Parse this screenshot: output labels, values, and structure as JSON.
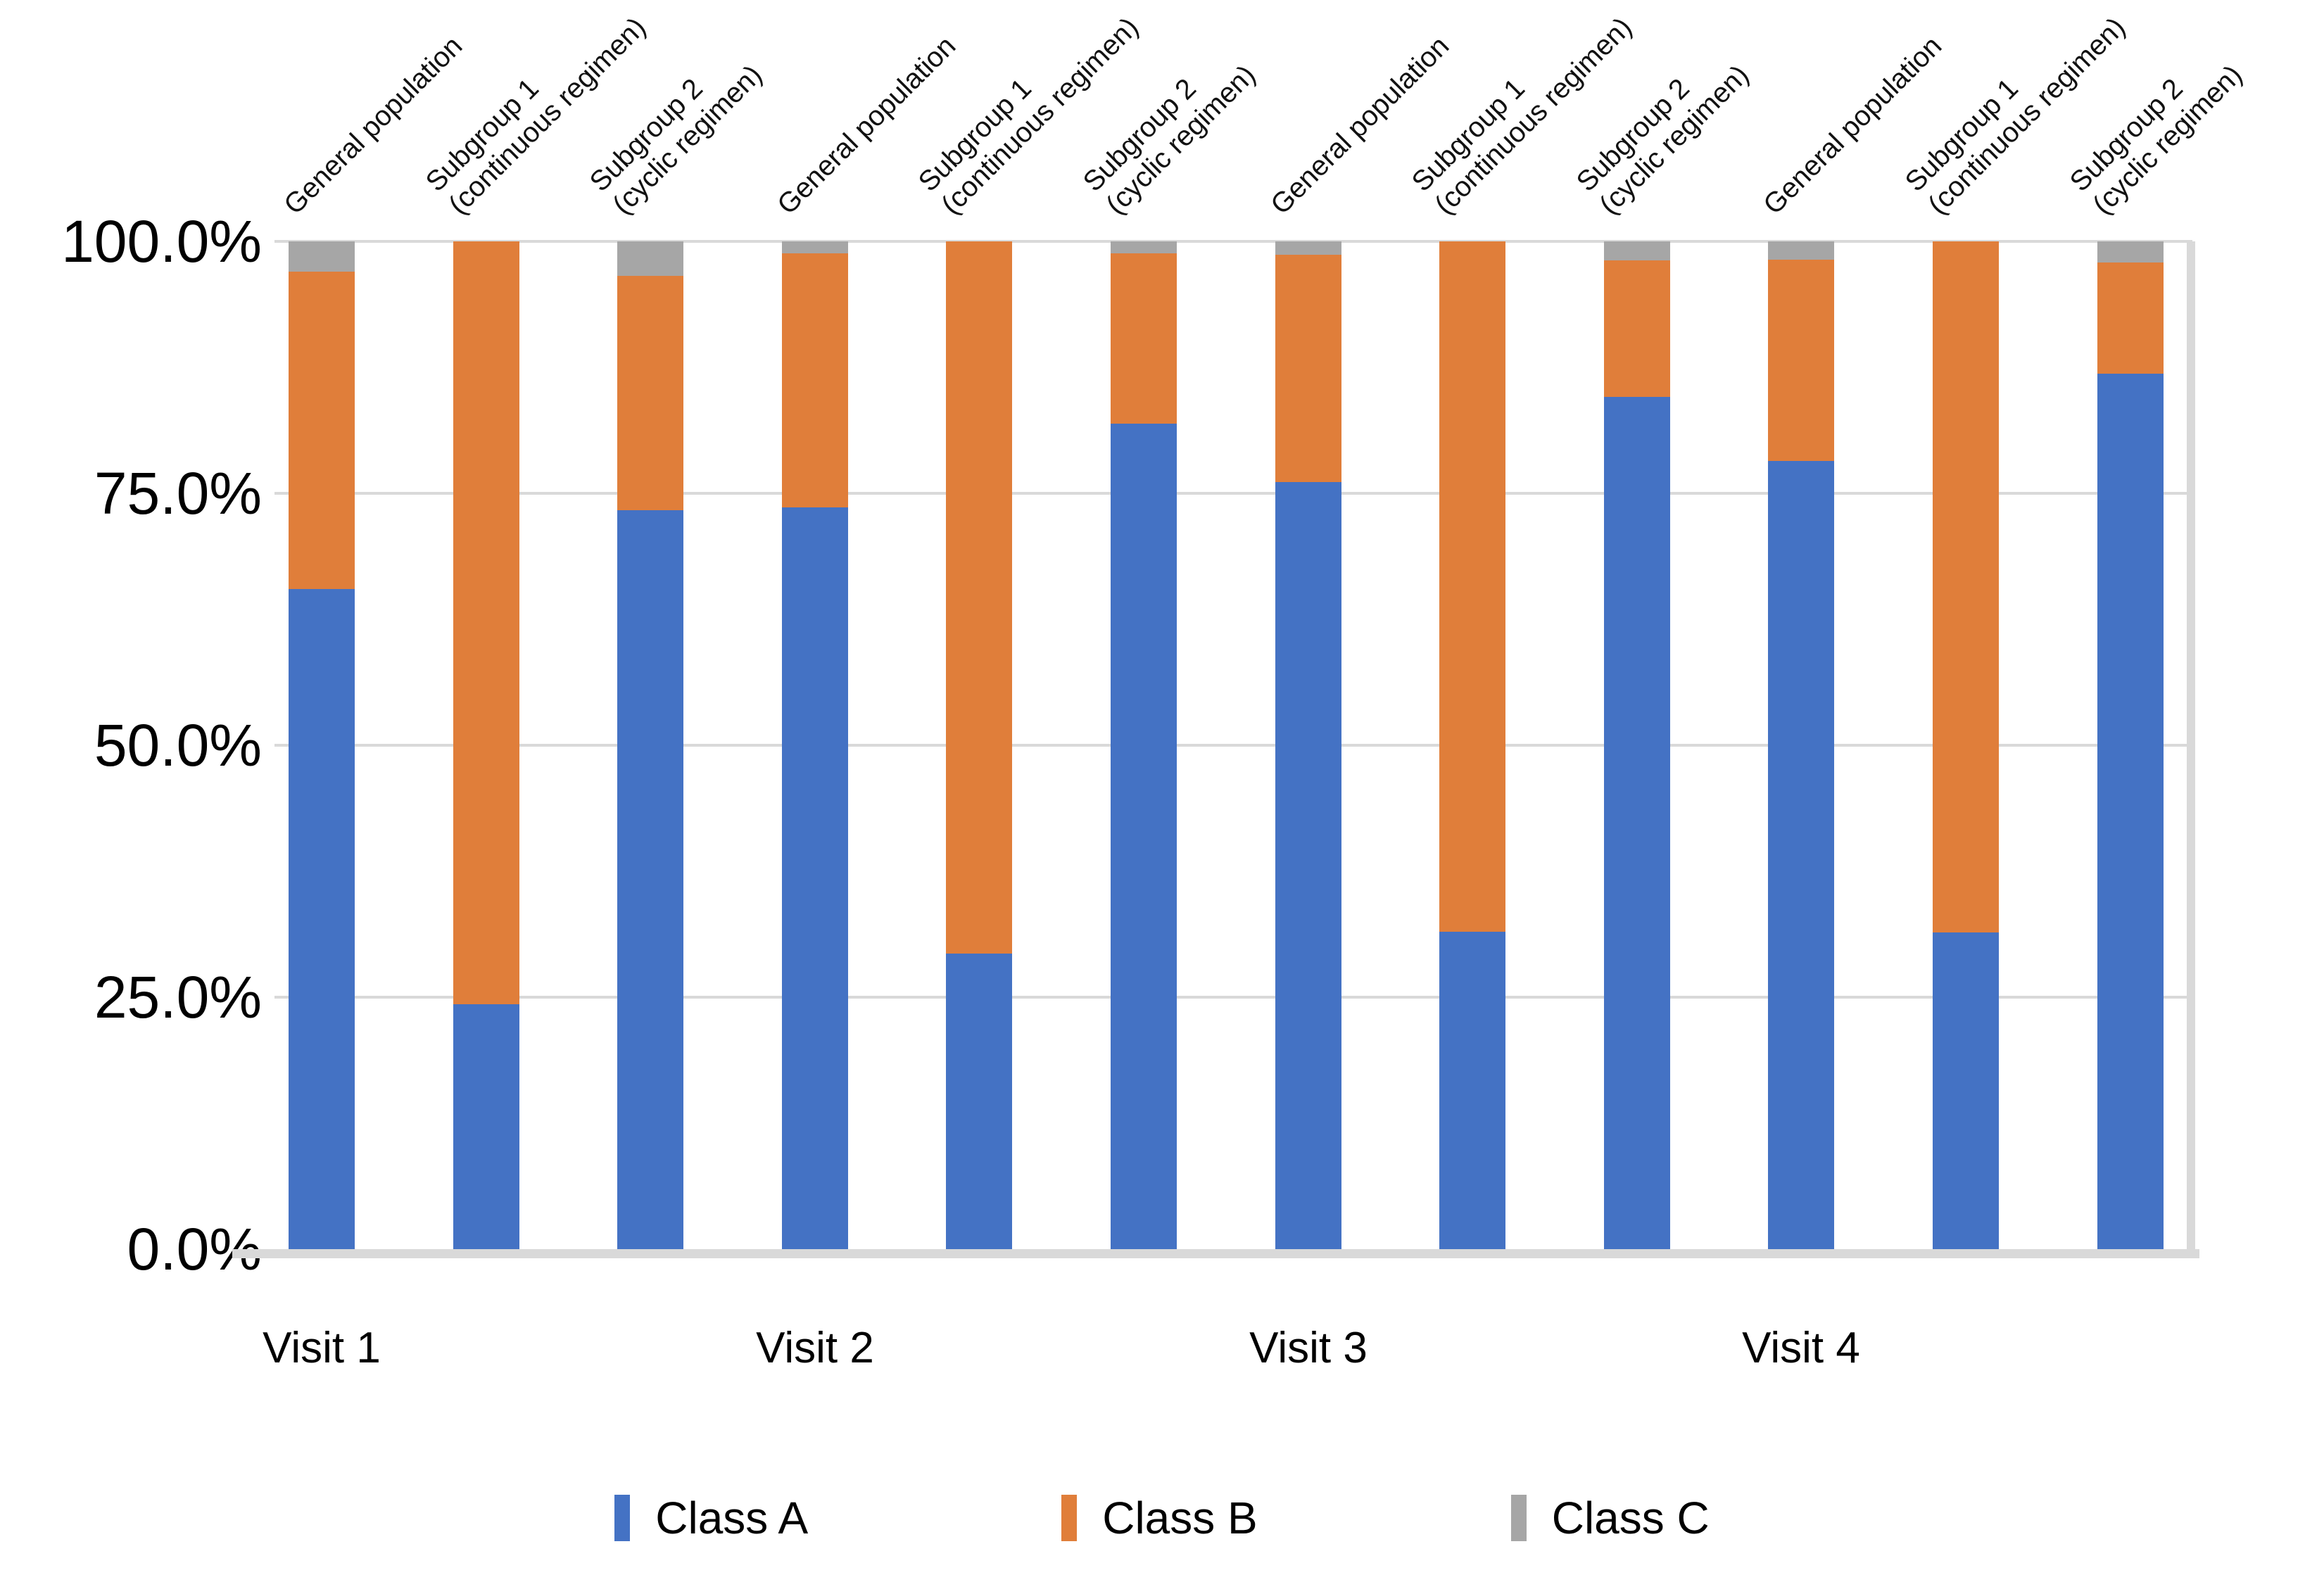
{
  "chart_data": {
    "type": "bar",
    "subtype": "stacked-100-percent-column",
    "title": "",
    "xlabel": "",
    "ylabel": "",
    "ylim": [
      0,
      100
    ],
    "grid": "horizontal",
    "legend_position": "bottom",
    "y_ticks": [
      "100.0%",
      "75.0%",
      "50.0%",
      "25.0%",
      "0.0%"
    ],
    "groups": [
      "Visit 1",
      "Visit 2",
      "Visit 3",
      "Visit 4"
    ],
    "categories": [
      {
        "group": "Visit 1",
        "label_lines": [
          "General population"
        ]
      },
      {
        "group": "Visit 1",
        "label_lines": [
          "Subgroup 1",
          "(continuous regimen)"
        ]
      },
      {
        "group": "Visit 1",
        "label_lines": [
          "Subgroup 2",
          "(cyclic regimen)"
        ]
      },
      {
        "group": "Visit 2",
        "label_lines": [
          "General population"
        ]
      },
      {
        "group": "Visit 2",
        "label_lines": [
          "Subgroup 1",
          "(continuous regimen)"
        ]
      },
      {
        "group": "Visit 2",
        "label_lines": [
          "Subgroup 2",
          "(cyclic regimen)"
        ]
      },
      {
        "group": "Visit 3",
        "label_lines": [
          "General population"
        ]
      },
      {
        "group": "Visit 3",
        "label_lines": [
          "Subgroup 1",
          "(continuous regimen)"
        ]
      },
      {
        "group": "Visit 3",
        "label_lines": [
          "Subgroup 2",
          "(cyclic regimen)"
        ]
      },
      {
        "group": "Visit 4",
        "label_lines": [
          "General population"
        ]
      },
      {
        "group": "Visit 4",
        "label_lines": [
          "Subgroup 1",
          "(continuous regimen)"
        ]
      },
      {
        "group": "Visit 4",
        "label_lines": [
          "Subgroup 2",
          "(cyclic regimen)"
        ]
      }
    ],
    "series": [
      {
        "name": "Class A",
        "color": "#4472C4",
        "values": [
          65.5,
          24.3,
          73.3,
          73.6,
          29.3,
          81.9,
          76.1,
          31.5,
          84.6,
          78.2,
          31.4,
          86.9
        ]
      },
      {
        "name": "Class B",
        "color": "#E07E3A",
        "values": [
          31.5,
          75.7,
          23.3,
          25.2,
          70.7,
          16.9,
          22.6,
          68.5,
          13.5,
          20.0,
          68.6,
          11.0
        ]
      },
      {
        "name": "Class C",
        "color": "#A6A6A6",
        "values": [
          3.0,
          0.0,
          3.4,
          1.2,
          0.0,
          1.2,
          1.3,
          0.0,
          1.9,
          1.8,
          0.0,
          2.1
        ]
      }
    ]
  },
  "legend": {
    "items": [
      {
        "label": "Class A",
        "color": "#4472C4"
      },
      {
        "label": "Class B",
        "color": "#E07E3A"
      },
      {
        "label": "Class C",
        "color": "#A6A6A6"
      }
    ]
  },
  "colors": {
    "gridline": "#D9D9D9",
    "axis_band": "#D9D9D9",
    "text": "#000000",
    "background": "#FFFFFF"
  }
}
